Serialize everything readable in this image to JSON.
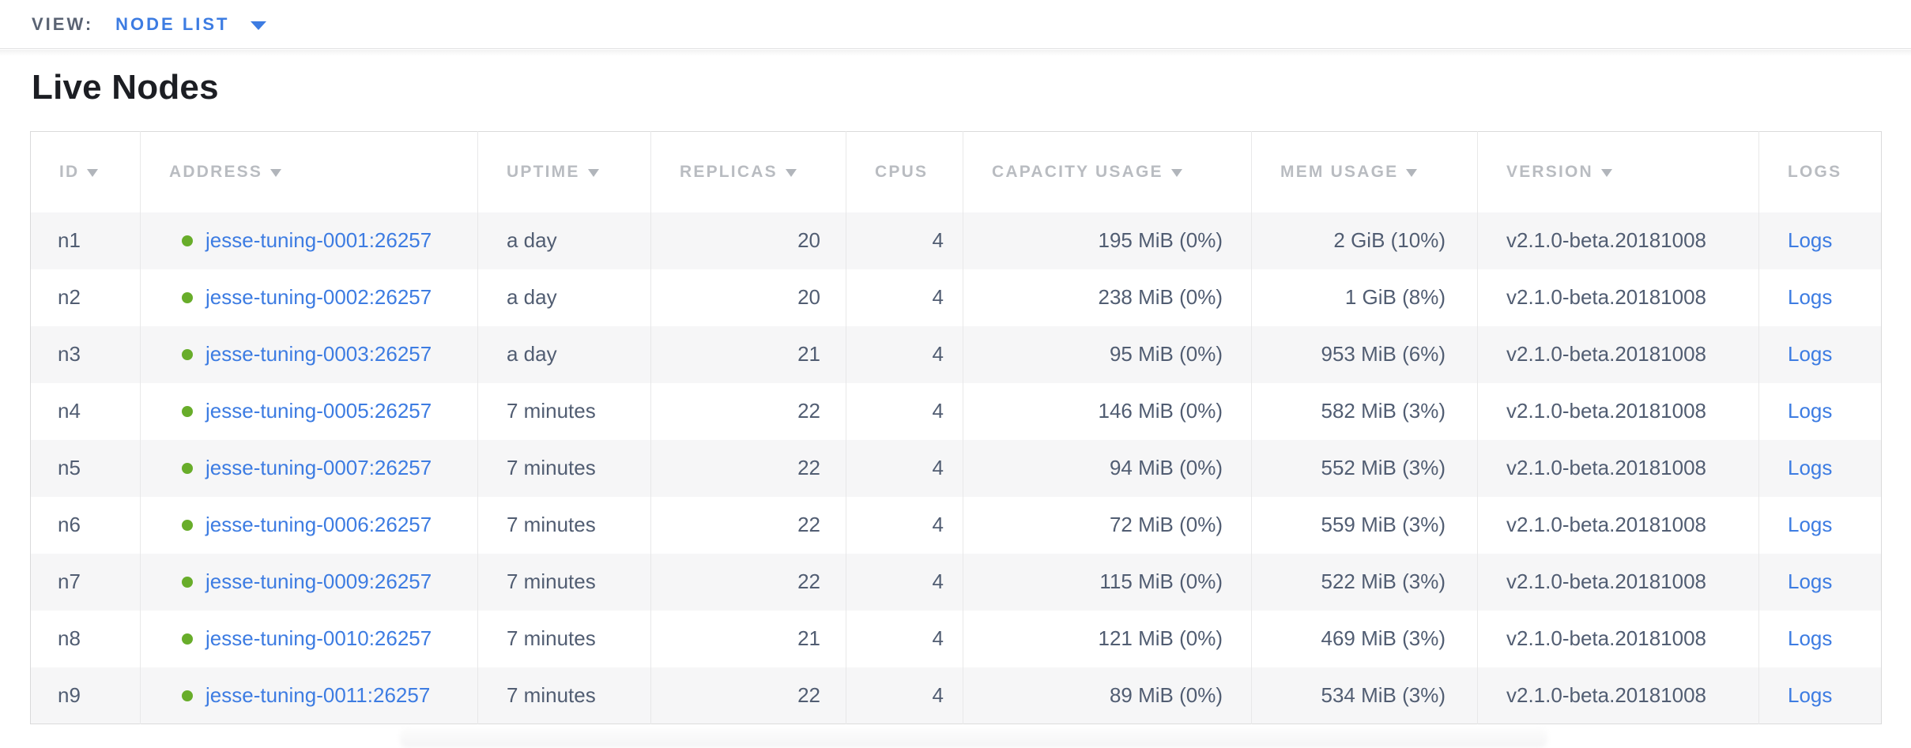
{
  "view_bar": {
    "label": "VIEW:",
    "selected": "NODE LIST"
  },
  "page": {
    "title": "Live Nodes"
  },
  "table": {
    "columns": [
      {
        "label": "ID",
        "sortable": true
      },
      {
        "label": "ADDRESS",
        "sortable": true
      },
      {
        "label": "UPTIME",
        "sortable": true
      },
      {
        "label": "REPLICAS",
        "sortable": true
      },
      {
        "label": "CPUS",
        "sortable": false
      },
      {
        "label": "CAPACITY USAGE",
        "sortable": true
      },
      {
        "label": "MEM USAGE",
        "sortable": true
      },
      {
        "label": "VERSION",
        "sortable": true
      },
      {
        "label": "LOGS",
        "sortable": false
      }
    ],
    "rows": [
      {
        "id": "n1",
        "address": "jesse-tuning-0001:26257",
        "uptime": "a day",
        "replicas": "20",
        "cpus": "4",
        "capacity_usage": "195 MiB (0%)",
        "mem_usage": "2 GiB (10%)",
        "version": "v2.1.0-beta.20181008",
        "logs": "Logs"
      },
      {
        "id": "n2",
        "address": "jesse-tuning-0002:26257",
        "uptime": "a day",
        "replicas": "20",
        "cpus": "4",
        "capacity_usage": "238 MiB (0%)",
        "mem_usage": "1 GiB (8%)",
        "version": "v2.1.0-beta.20181008",
        "logs": "Logs"
      },
      {
        "id": "n3",
        "address": "jesse-tuning-0003:26257",
        "uptime": "a day",
        "replicas": "21",
        "cpus": "4",
        "capacity_usage": "95 MiB (0%)",
        "mem_usage": "953 MiB (6%)",
        "version": "v2.1.0-beta.20181008",
        "logs": "Logs"
      },
      {
        "id": "n4",
        "address": "jesse-tuning-0005:26257",
        "uptime": "7 minutes",
        "replicas": "22",
        "cpus": "4",
        "capacity_usage": "146 MiB (0%)",
        "mem_usage": "582 MiB (3%)",
        "version": "v2.1.0-beta.20181008",
        "logs": "Logs"
      },
      {
        "id": "n5",
        "address": "jesse-tuning-0007:26257",
        "uptime": "7 minutes",
        "replicas": "22",
        "cpus": "4",
        "capacity_usage": "94 MiB (0%)",
        "mem_usage": "552 MiB (3%)",
        "version": "v2.1.0-beta.20181008",
        "logs": "Logs"
      },
      {
        "id": "n6",
        "address": "jesse-tuning-0006:26257",
        "uptime": "7 minutes",
        "replicas": "22",
        "cpus": "4",
        "capacity_usage": "72 MiB (0%)",
        "mem_usage": "559 MiB (3%)",
        "version": "v2.1.0-beta.20181008",
        "logs": "Logs"
      },
      {
        "id": "n7",
        "address": "jesse-tuning-0009:26257",
        "uptime": "7 minutes",
        "replicas": "22",
        "cpus": "4",
        "capacity_usage": "115 MiB (0%)",
        "mem_usage": "522 MiB (3%)",
        "version": "v2.1.0-beta.20181008",
        "logs": "Logs"
      },
      {
        "id": "n8",
        "address": "jesse-tuning-0010:26257",
        "uptime": "7 minutes",
        "replicas": "21",
        "cpus": "4",
        "capacity_usage": "121 MiB (0%)",
        "mem_usage": "469 MiB (3%)",
        "version": "v2.1.0-beta.20181008",
        "logs": "Logs"
      },
      {
        "id": "n9",
        "address": "jesse-tuning-0011:26257",
        "uptime": "7 minutes",
        "replicas": "22",
        "cpus": "4",
        "capacity_usage": "89 MiB (0%)",
        "mem_usage": "534 MiB (3%)",
        "version": "v2.1.0-beta.20181008",
        "logs": "Logs"
      }
    ]
  },
  "icons": {
    "view_dropdown": "chevron-down-icon",
    "column_sort": "triangle-down-icon",
    "node_status": "green-dot-icon"
  },
  "colors": {
    "accent_blue": "#3d7ce2",
    "live_green": "#68ad2a",
    "header_gray": "#b9bcc1",
    "cell_slate": "#515d72",
    "stripe": "#f6f6f7",
    "border": "#e8e8e9"
  }
}
